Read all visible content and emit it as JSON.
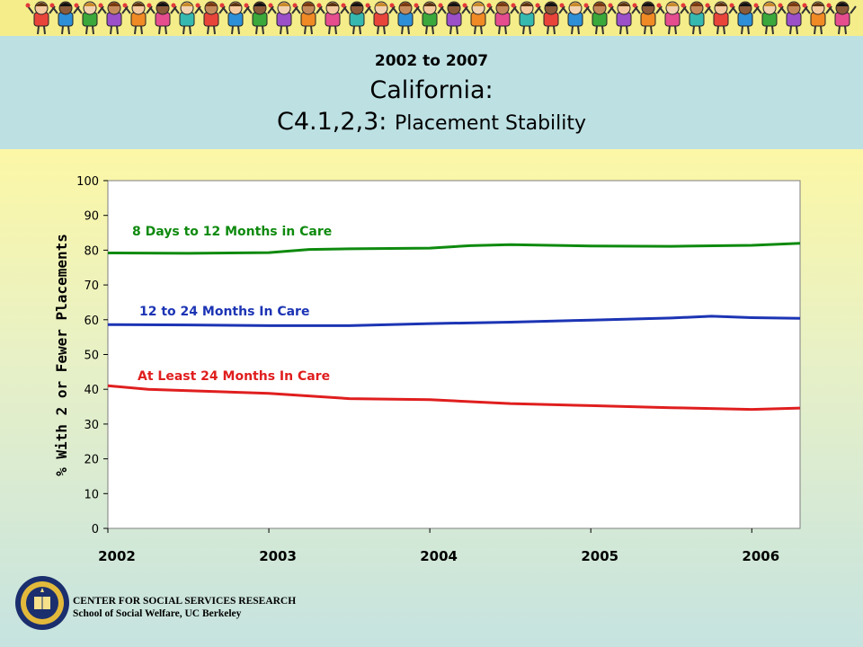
{
  "header": {
    "subtitle": "2002 to 2007",
    "title_line1": "California:",
    "title_code": "C4.1,2,3:",
    "title_rest": "Placement Stability"
  },
  "footer": {
    "org_line1": "CENTER FOR SOCIAL SERVICES RESEARCH",
    "org_line2": "School of Social Welfare, UC Berkeley"
  },
  "banner": {
    "icon": "cartoon-children-row"
  },
  "colors": {
    "green": "#0e8a0e",
    "blue": "#1c34b4",
    "red": "#e01e1e",
    "banner": "#f4ed8a",
    "header": "#bde0e3"
  },
  "chart_data": {
    "type": "line",
    "title": "",
    "ylabel": "% With 2 or Fewer Placements",
    "xlabel": "",
    "ylim": [
      0,
      100
    ],
    "yticks": [
      0,
      10,
      20,
      30,
      40,
      50,
      60,
      70,
      80,
      90,
      100
    ],
    "xlim": [
      2002.0,
      2006.3
    ],
    "xticks": [
      2002,
      2003,
      2004,
      2005,
      2006
    ],
    "xtick_labels": [
      "2002",
      "2003",
      "2004",
      "2005",
      "2006"
    ],
    "grid": false,
    "series": [
      {
        "name": "8 Days to 12 Months in Care",
        "color": "#0e8a0e",
        "x": [
          2002.0,
          2002.5,
          2003.0,
          2003.25,
          2003.5,
          2004.0,
          2004.25,
          2004.5,
          2005.0,
          2005.5,
          2006.0,
          2006.3
        ],
        "y": [
          79.2,
          79.1,
          79.3,
          80.2,
          80.4,
          80.6,
          81.3,
          81.6,
          81.2,
          81.1,
          81.4,
          82.0
        ]
      },
      {
        "name": "12 to 24 Months In Care",
        "color": "#1c34b4",
        "x": [
          2002.0,
          2002.5,
          2003.0,
          2003.5,
          2004.0,
          2004.5,
          2005.0,
          2005.5,
          2005.75,
          2006.0,
          2006.3
        ],
        "y": [
          58.6,
          58.5,
          58.3,
          58.3,
          58.9,
          59.3,
          59.9,
          60.5,
          61.0,
          60.6,
          60.4
        ]
      },
      {
        "name": "At Least 24 Months In Care",
        "color": "#e01e1e",
        "x": [
          2002.0,
          2002.25,
          2002.5,
          2003.0,
          2003.5,
          2004.0,
          2004.5,
          2005.0,
          2005.5,
          2006.0,
          2006.3
        ],
        "y": [
          41.0,
          40.0,
          39.6,
          38.8,
          37.3,
          37.0,
          35.9,
          35.3,
          34.7,
          34.2,
          34.6
        ]
      }
    ]
  }
}
